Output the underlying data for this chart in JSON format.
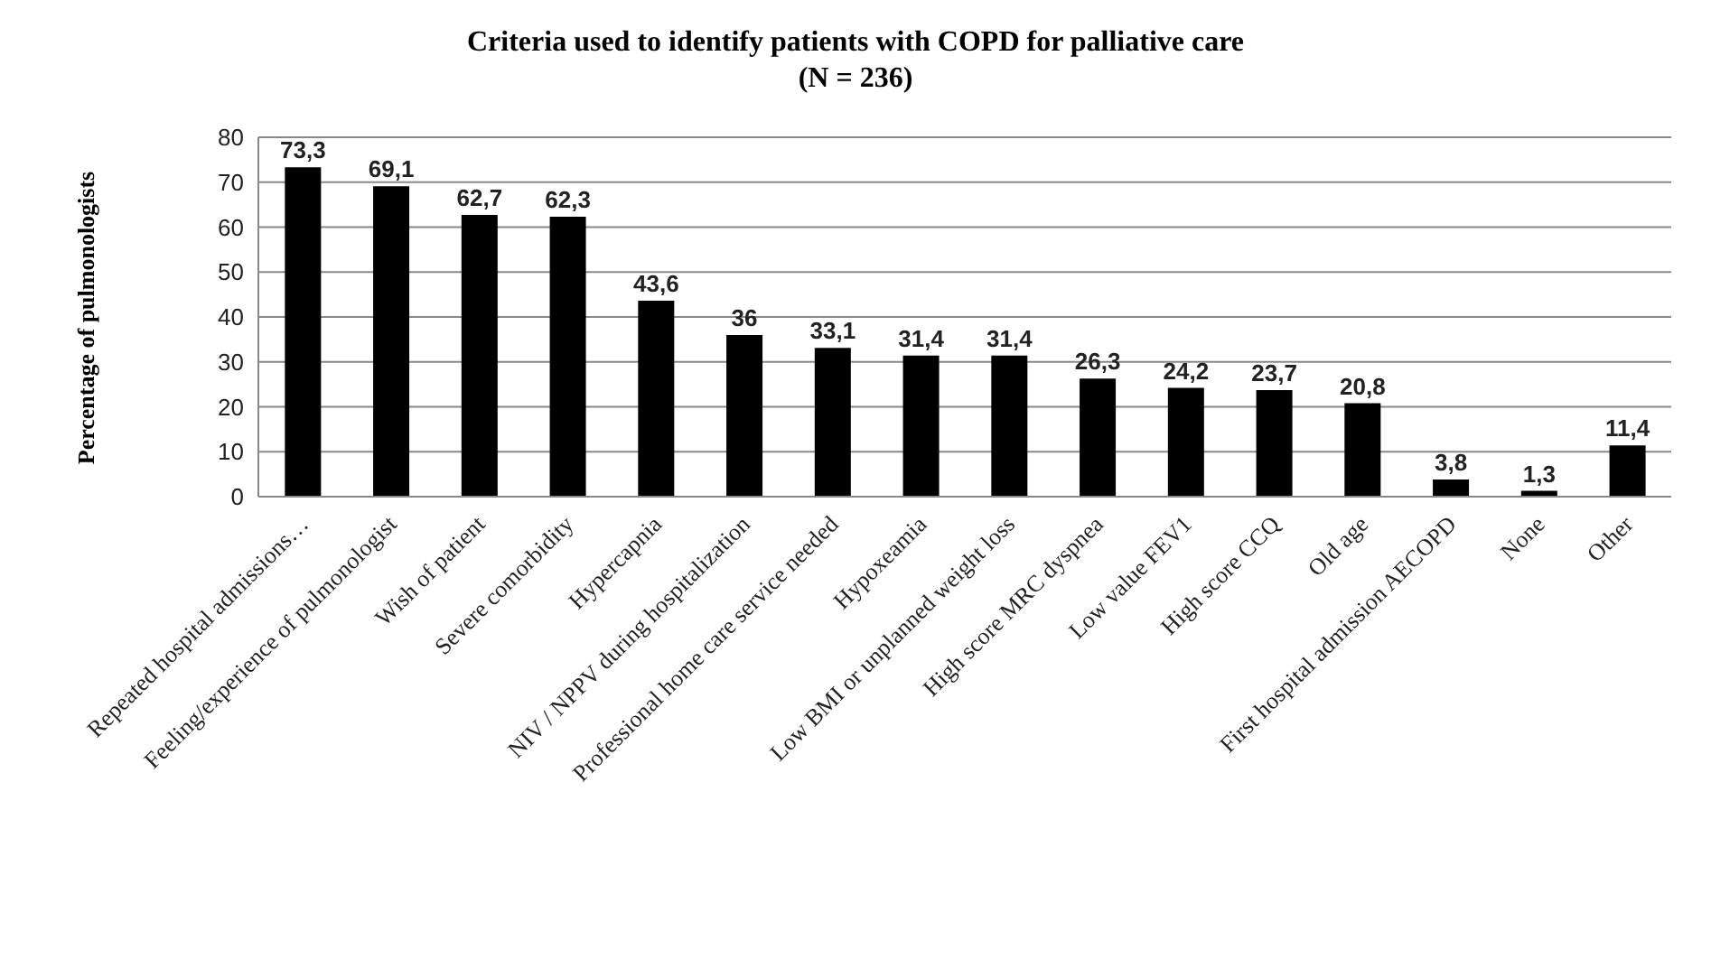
{
  "chart_data": {
    "type": "bar",
    "title": "Criteria used to identify patients with COPD for palliative care",
    "subtitle": "(N = 236)",
    "ylabel": "Percentage of pulmonologists",
    "categories": [
      "Repeated hospital admissions…",
      "Feeling/experience of pulmonologist",
      "Wish of patient",
      "Severe comorbidity",
      "Hypercapnia",
      "NIV / NPPV  during hospitalization",
      "Professional home care service needed",
      "Hypoxeamia",
      "Low BMI or unplanned weight loss",
      "High score MRC dyspnea",
      "Low value FEV1",
      "High score CCQ",
      "Old age",
      "First hospital admission AECOPD",
      "None",
      "Other"
    ],
    "values": [
      73.3,
      69.1,
      62.7,
      62.3,
      43.6,
      36,
      33.1,
      31.4,
      31.4,
      26.3,
      24.2,
      23.7,
      20.8,
      3.8,
      1.3,
      11.4
    ],
    "value_labels": [
      "73,3",
      "69,1",
      "62,7",
      "62,3",
      "43,6",
      "36",
      "33,1",
      "31,4",
      "31,4",
      "26,3",
      "24,2",
      "23,7",
      "20,8",
      "3,8",
      "1,3",
      "11,4"
    ],
    "color": "#000000",
    "ylim": [
      0,
      80
    ],
    "yticks": [
      0,
      10,
      20,
      30,
      40,
      50,
      60,
      70,
      80
    ],
    "grid": "y",
    "legend": false
  }
}
